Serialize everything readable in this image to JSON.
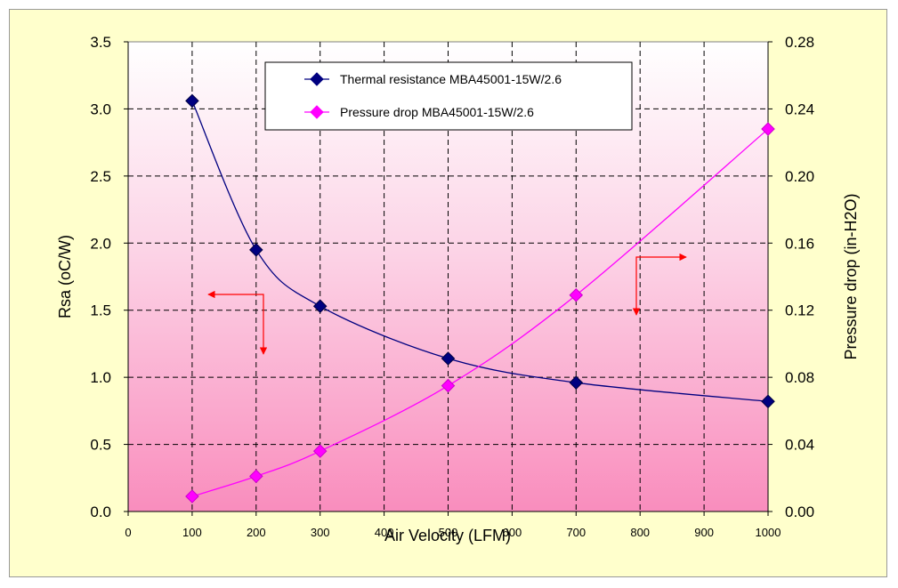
{
  "chart_data": {
    "type": "line",
    "xlabel": "Air Velocity (LFM)",
    "ylabel": "Rsa (oC/W)",
    "y2label": "Pressure drop (in-H2O)",
    "xlim": [
      0,
      1000
    ],
    "ylim": [
      0,
      3.5
    ],
    "y2lim": [
      0,
      0.28
    ],
    "x_ticks": [
      "0",
      "100",
      "200",
      "300",
      "400",
      "500",
      "600",
      "700",
      "800",
      "900",
      "1000"
    ],
    "y_ticks": [
      "0.0",
      "0.5",
      "1.0",
      "1.5",
      "2.0",
      "2.5",
      "3.0",
      "3.5"
    ],
    "y2_ticks": [
      "0.00",
      "0.04",
      "0.08",
      "0.12",
      "0.16",
      "0.20",
      "0.24",
      "0.28"
    ],
    "grid": true,
    "legend_position": "top-center",
    "x": [
      100,
      200,
      300,
      500,
      700,
      1000
    ],
    "series": [
      {
        "name": "Thermal resistance MBA45001-15W/2.6",
        "axis": "left",
        "color": "#000080",
        "marker": "diamond",
        "values": [
          3.06,
          1.95,
          1.53,
          1.14,
          0.96,
          0.82
        ]
      },
      {
        "name": "Pressure drop MBA45001-15W/2.6",
        "axis": "right",
        "color": "#ff00ff",
        "marker": "diamond",
        "values": [
          0.009,
          0.021,
          0.036,
          0.075,
          0.129,
          0.228
        ]
      }
    ]
  }
}
